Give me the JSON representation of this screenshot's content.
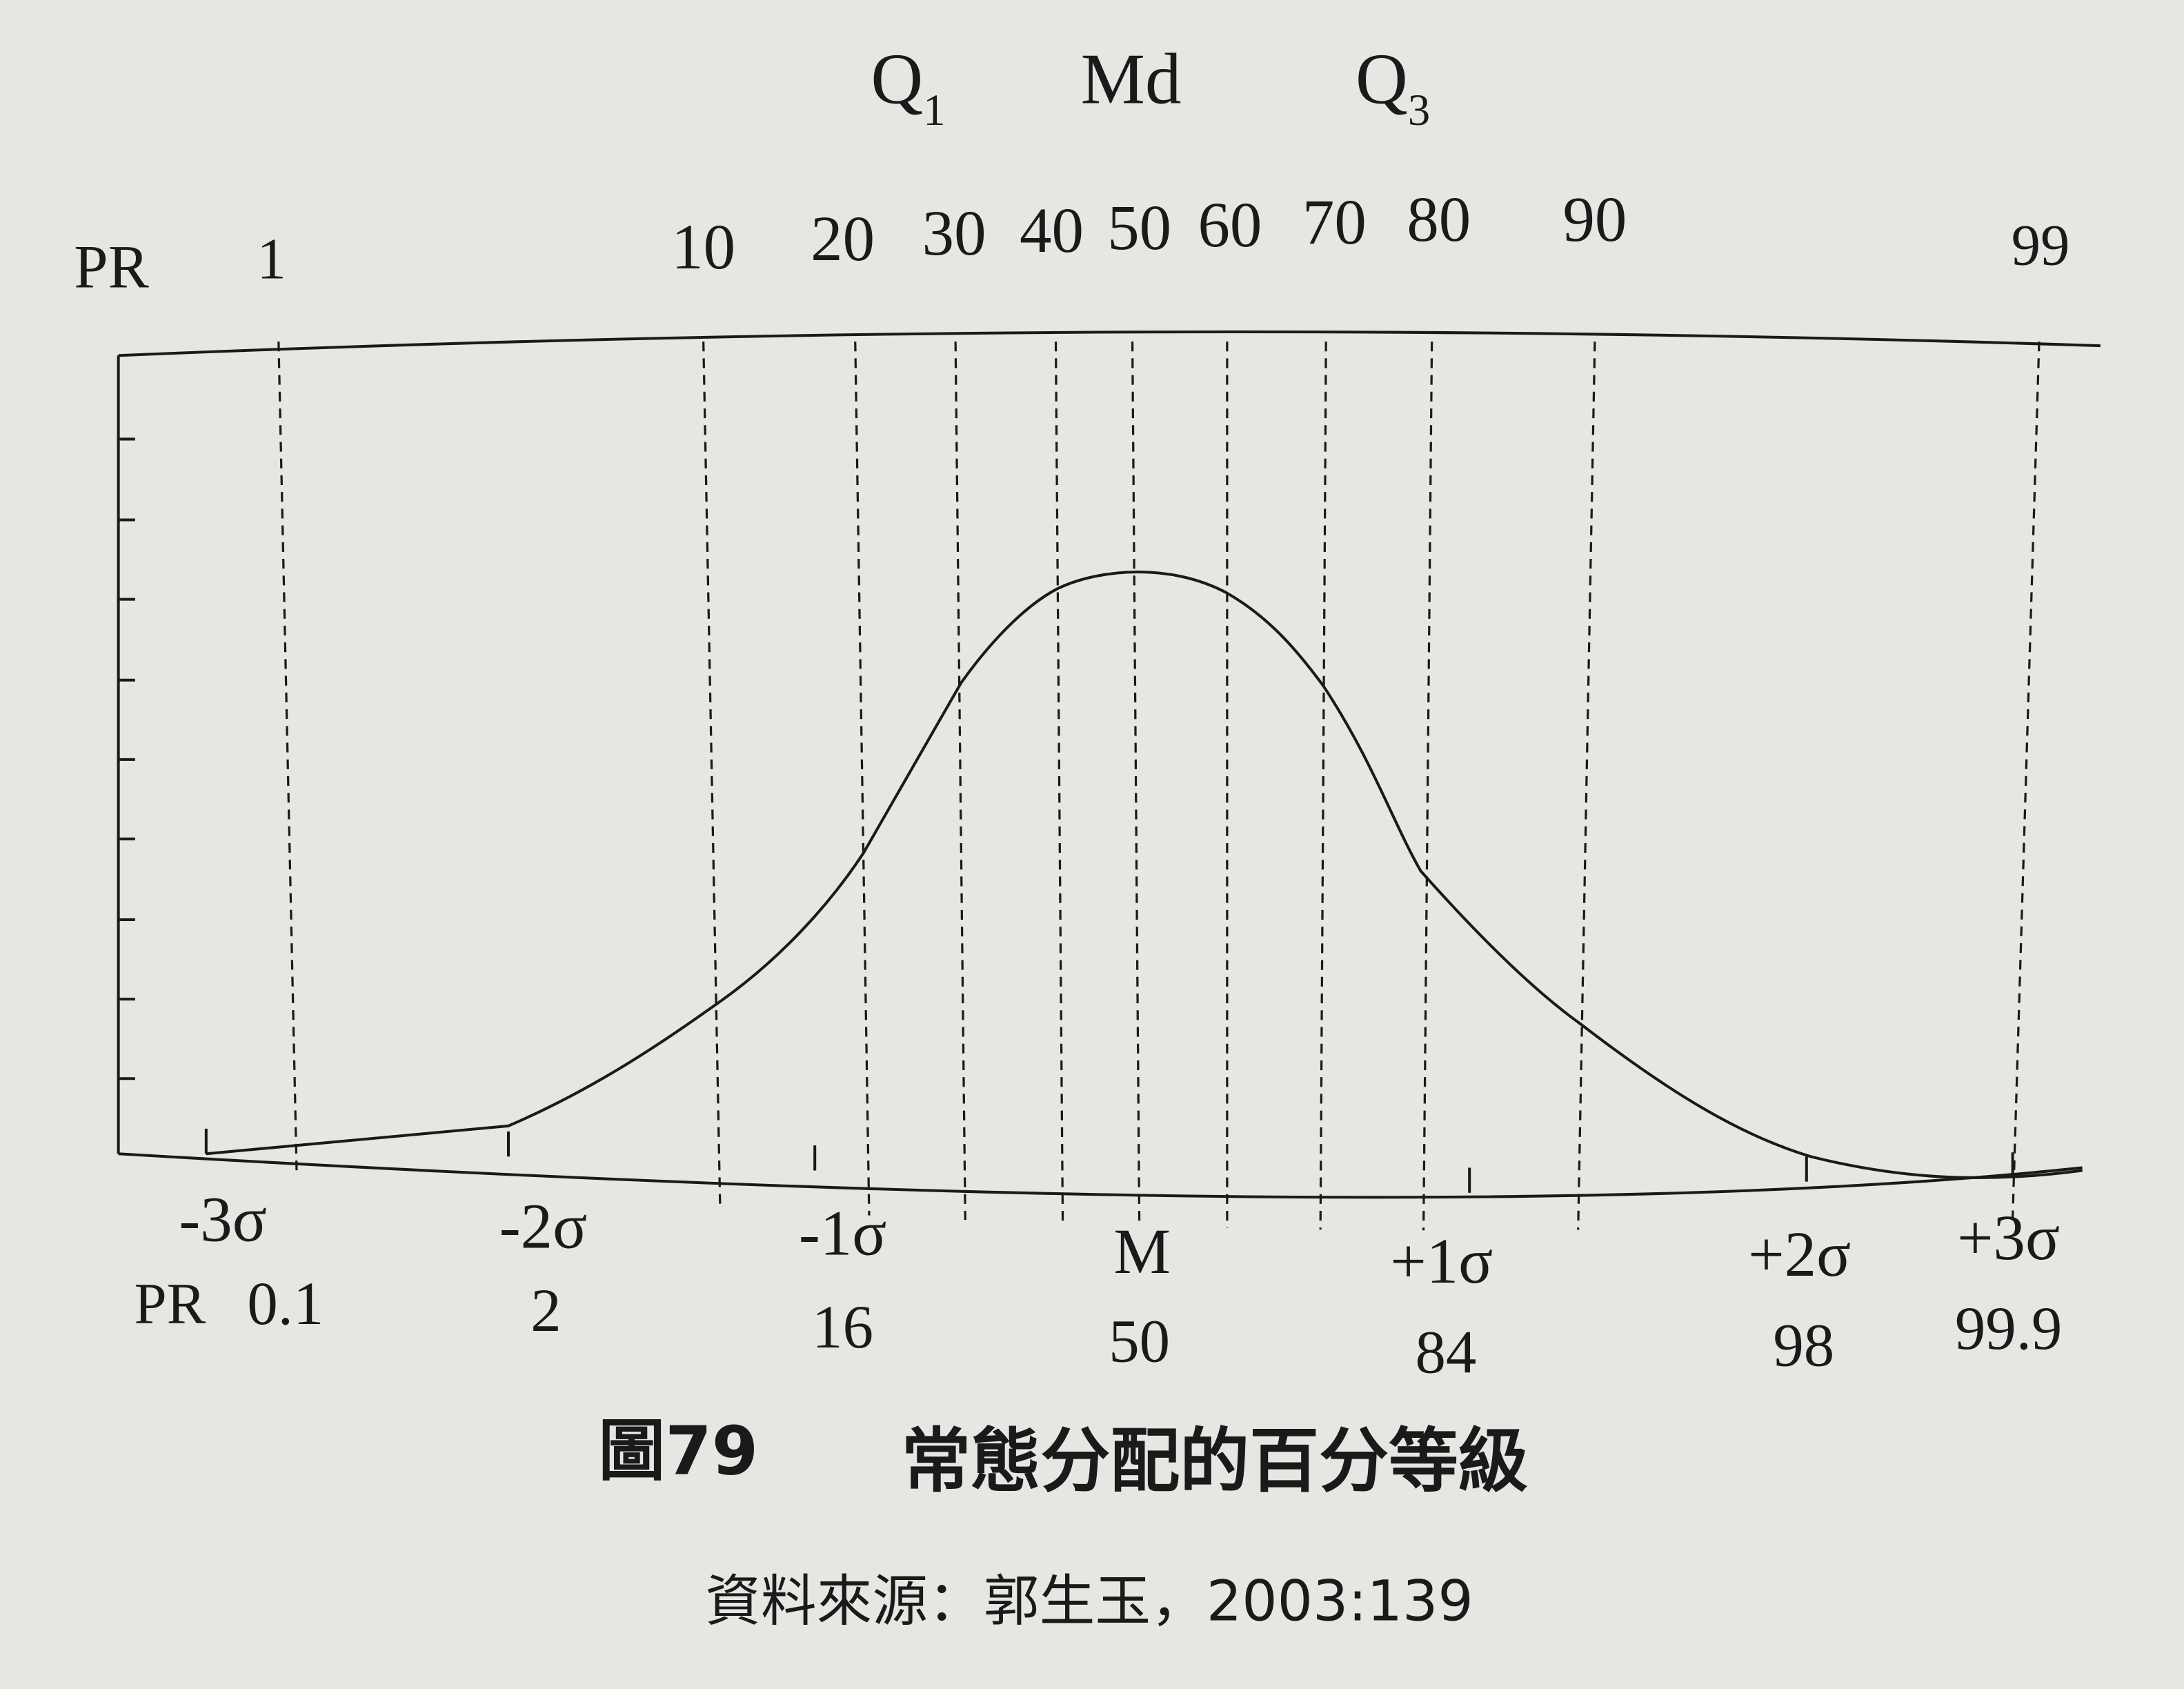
{
  "quartiles": [
    {
      "letter": "Q",
      "sub": "1"
    },
    {
      "letter": "Md",
      "sub": null
    },
    {
      "letter": "Q",
      "sub": "3"
    }
  ],
  "pr_top": {
    "label": "PR",
    "values": [
      "1",
      "10",
      "20",
      "30",
      "40",
      "50",
      "60",
      "70",
      "80",
      "90",
      "99"
    ]
  },
  "sigma_labels": [
    "-3σ",
    "-2σ",
    "-1σ",
    "M",
    "+1σ",
    "+2σ",
    "+3σ"
  ],
  "pr_bottom": {
    "label": "PR",
    "values": [
      "0.1",
      "2",
      "16",
      "50",
      "84",
      "98",
      "99.9"
    ]
  },
  "caption": {
    "figure": "圖79",
    "title": "常態分配的百分等級"
  },
  "source": "資料來源：郭生玉，2003:139"
}
